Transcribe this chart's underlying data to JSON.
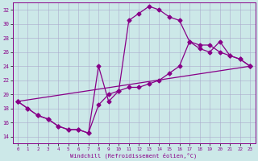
{
  "xlabel": "Windchill (Refroidissement éolien,°C)",
  "xlim": [
    -0.5,
    23.5
  ],
  "ylim": [
    13,
    33
  ],
  "yticks": [
    14,
    16,
    18,
    20,
    22,
    24,
    26,
    28,
    30,
    32
  ],
  "xticks": [
    0,
    1,
    2,
    3,
    4,
    5,
    6,
    7,
    8,
    9,
    10,
    11,
    12,
    13,
    14,
    15,
    16,
    17,
    18,
    19,
    20,
    21,
    22,
    23
  ],
  "background_color": "#cce8e8",
  "grid_color": "#aaaacc",
  "line_color": "#880088",
  "curve1_x": [
    0,
    1,
    2,
    3,
    4,
    5,
    6,
    7,
    8,
    9,
    10,
    11,
    12,
    13,
    14,
    15,
    16,
    17,
    18,
    19,
    20,
    21,
    22,
    23
  ],
  "curve1_y": [
    19,
    18,
    17,
    16.5,
    15.5,
    15,
    15,
    14.5,
    18.5,
    20,
    20.5,
    30.5,
    31.5,
    32.5,
    32,
    31,
    30.5,
    27.5,
    27,
    27,
    26,
    25.5,
    25,
    24
  ],
  "curve2_x": [
    0,
    1,
    2,
    3,
    4,
    5,
    6,
    7,
    8,
    9,
    10,
    11,
    12,
    13,
    14,
    15,
    16,
    17,
    18,
    19,
    20,
    21,
    22,
    23
  ],
  "curve2_y": [
    19,
    18,
    17,
    16.5,
    15.5,
    15,
    15,
    14.5,
    24,
    19,
    20.5,
    21,
    21,
    21.5,
    22,
    23,
    24,
    27.5,
    26.5,
    26,
    27.5,
    25.5,
    25,
    24
  ],
  "line3_x": [
    0,
    23
  ],
  "line3_y": [
    19,
    24
  ],
  "marker": "D",
  "marker_size": 2.5,
  "linewidth": 0.9
}
